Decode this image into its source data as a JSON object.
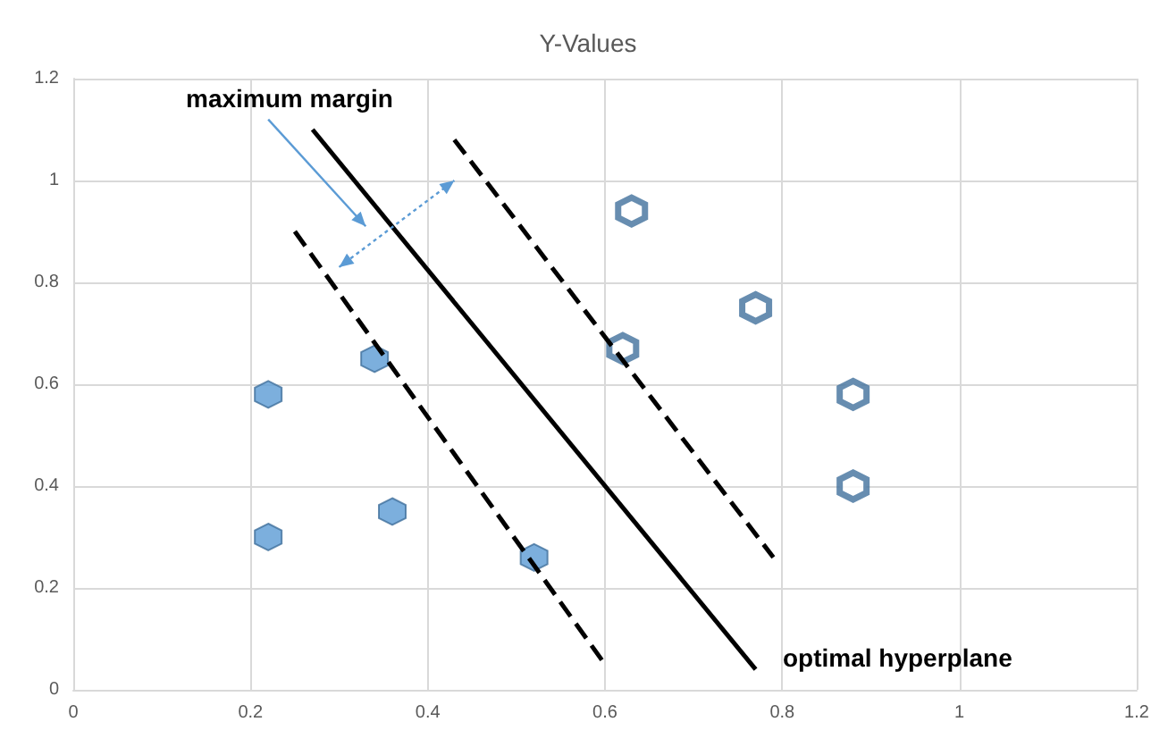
{
  "chart_data": {
    "type": "scatter",
    "title": "Y-Values",
    "xlim": [
      0,
      1.2
    ],
    "xticks": [
      0,
      0.2,
      0.4,
      0.6,
      0.8,
      1,
      1.2
    ],
    "ylim": [
      0,
      1.2
    ],
    "yticks": [
      0,
      0.2,
      0.4,
      0.6,
      0.8,
      1,
      1.2
    ],
    "grid": true,
    "series": [
      {
        "color": "#5b9bd5",
        "x": [
          0.22,
          0.22,
          0.34,
          0.36,
          0.52
        ],
        "values": [
          0.58,
          0.3,
          0.65,
          0.35,
          0.26
        ]
      },
      {
        "color": "#41719c",
        "x": [
          0.63,
          0.62,
          0.77,
          0.88,
          0.88
        ],
        "values": [
          0.94,
          0.67,
          0.75,
          0.58,
          0.4
        ]
      },
      {
        "type": "line",
        "color": "#000000",
        "line_style": "solid",
        "x": [
          0.27,
          0.77
        ],
        "values": [
          1.1,
          0.04
        ]
      },
      {
        "type": "line",
        "color": "#000000",
        "line_style": "dashed",
        "x": [
          0.43,
          0.79
        ],
        "values": [
          1.08,
          0.26
        ]
      },
      {
        "type": "line",
        "color": "#000000",
        "line_style": "dashed",
        "x": [
          0.25,
          0.6
        ],
        "values": [
          0.9,
          0.05
        ]
      }
    ],
    "annotations": [
      "maximum margin",
      "optimal hyperplane"
    ]
  }
}
